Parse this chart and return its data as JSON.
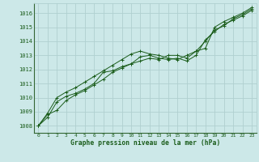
{
  "background_color": "#cce8e8",
  "grid_color": "#b0d0d0",
  "line_color": "#1a5c1a",
  "marker_color": "#1a5c1a",
  "text_color": "#1a5c1a",
  "xlabel": "Graphe pression niveau de la mer (hPa)",
  "xlim": [
    -0.5,
    23.5
  ],
  "ylim": [
    1007.5,
    1016.7
  ],
  "yticks": [
    1008,
    1009,
    1010,
    1011,
    1012,
    1013,
    1014,
    1015,
    1016
  ],
  "xticks": [
    0,
    1,
    2,
    3,
    4,
    5,
    6,
    7,
    8,
    9,
    10,
    11,
    12,
    13,
    14,
    15,
    16,
    17,
    18,
    19,
    20,
    21,
    22,
    23
  ],
  "series": [
    [
      1008.0,
      1008.8,
      1009.1,
      1009.8,
      1010.2,
      1010.5,
      1010.9,
      1011.3,
      1011.8,
      1012.1,
      1012.4,
      1012.9,
      1013.0,
      1012.8,
      1012.7,
      1012.8,
      1012.6,
      1013.0,
      1014.1,
      1014.7,
      1015.2,
      1015.5,
      1015.8,
      1016.2
    ],
    [
      1008.0,
      1008.6,
      1009.7,
      1010.1,
      1010.3,
      1010.6,
      1011.0,
      1011.8,
      1011.9,
      1012.2,
      1012.4,
      1012.6,
      1012.8,
      1012.7,
      1013.0,
      1013.0,
      1012.8,
      1013.3,
      1013.5,
      1015.0,
      1015.4,
      1015.7,
      1016.0,
      1016.4
    ],
    [
      1008.0,
      1008.9,
      1010.0,
      1010.4,
      1010.7,
      1011.1,
      1011.5,
      1011.9,
      1012.3,
      1012.7,
      1013.1,
      1013.3,
      1013.1,
      1013.0,
      1012.8,
      1012.7,
      1013.0,
      1013.3,
      1014.0,
      1014.8,
      1015.1,
      1015.6,
      1015.9,
      1016.3
    ]
  ]
}
